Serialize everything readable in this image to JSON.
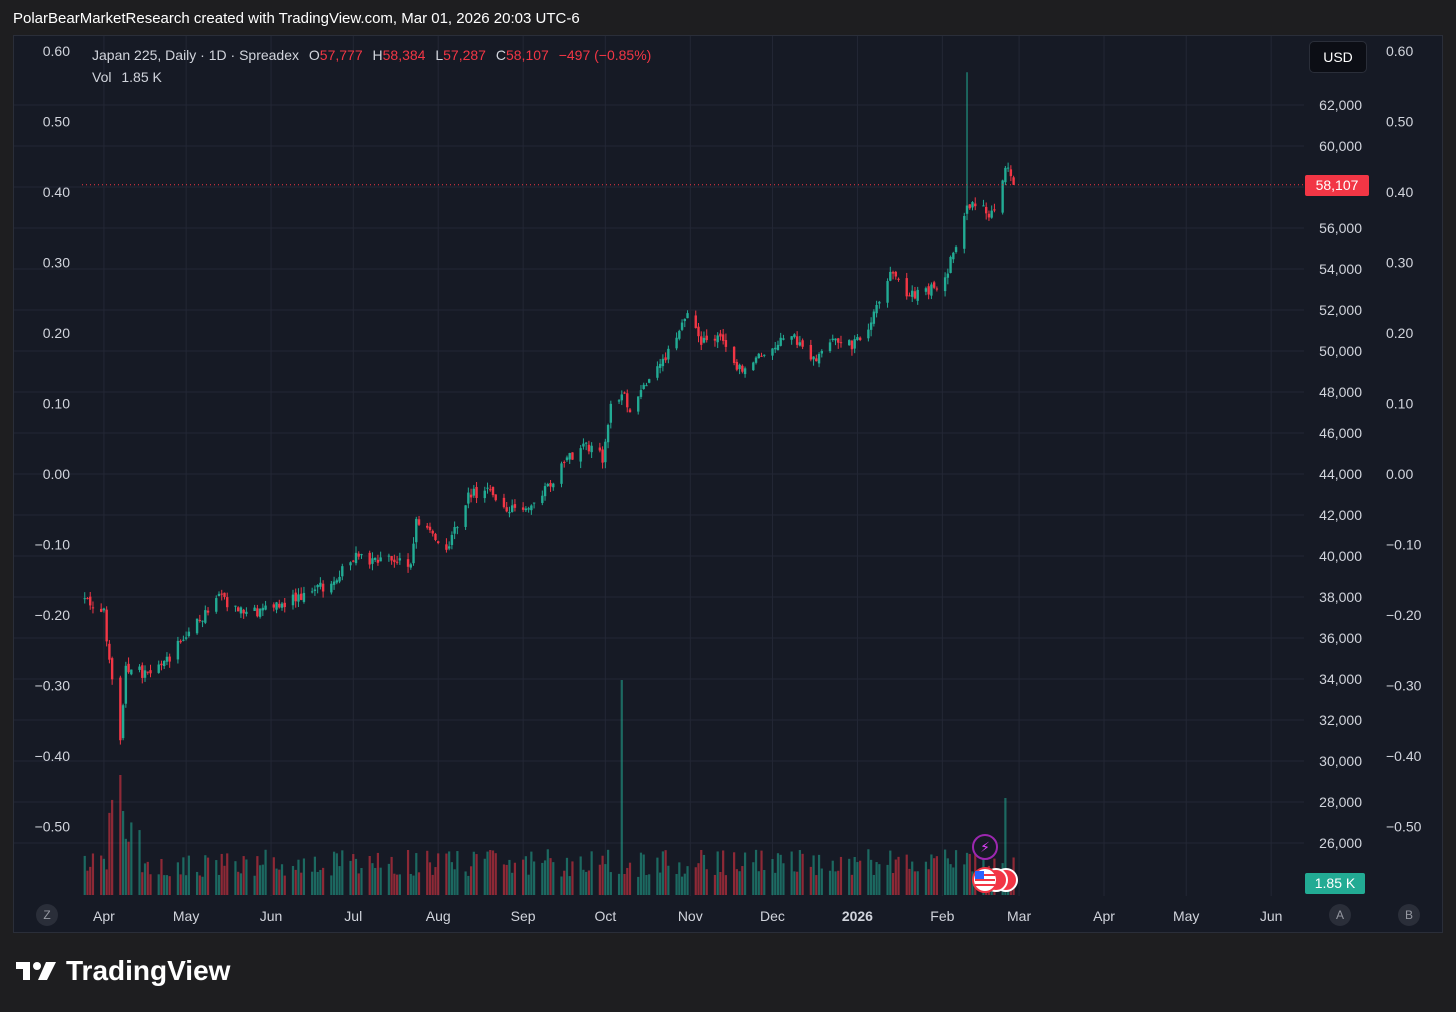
{
  "caption": "PolarBearMarketResearch created with TradingView.com, Mar 01, 2026 20:03 UTC-6",
  "legend": {
    "symbol": "Japan 225, Daily · 1D · Spreadex",
    "o_label": "O",
    "o_value": "57,777",
    "h_label": "H",
    "h_value": "58,384",
    "l_label": "L",
    "l_value": "57,287",
    "c_label": "C",
    "c_value": "58,107",
    "change": "−497 (−0.85%)",
    "vol_label": "Vol",
    "vol_value": "1.85 K"
  },
  "currency_button": "USD",
  "last_price_tag": "58,107",
  "volume_tag": "1.85 K",
  "corner_buttons": {
    "z": "Z",
    "a": "A",
    "b": "B"
  },
  "brand": "TradingView",
  "icons": {
    "event": "lightning-icon",
    "flags": "us-flag-icon",
    "logo": "tradingview-logo-icon"
  },
  "colors": {
    "up": "#22ab94",
    "down": "#f23645",
    "background": "#161a25",
    "grid": "#232735"
  },
  "chart_data": {
    "type": "candlestick",
    "price_axis_right": {
      "ticks": [
        "62,000",
        "60,000",
        "58,000",
        "56,000",
        "54,000",
        "52,000",
        "50,000",
        "48,000",
        "46,000",
        "44,000",
        "42,000",
        "40,000",
        "38,000",
        "36,000",
        "34,000",
        "32,000",
        "30,000",
        "28,000",
        "26,000"
      ],
      "values": [
        62000,
        60000,
        58000,
        56000,
        54000,
        52000,
        50000,
        48000,
        46000,
        44000,
        42000,
        40000,
        38000,
        36000,
        34000,
        32000,
        30000,
        28000,
        26000
      ],
      "last_price": 58107
    },
    "pane_axis": {
      "ticks": [
        "0.60",
        "0.50",
        "0.40",
        "0.30",
        "0.20",
        "0.10",
        "0.00",
        "−0.10",
        "−0.20",
        "−0.30",
        "−0.40",
        "−0.50"
      ],
      "values": [
        0.6,
        0.5,
        0.4,
        0.3,
        0.2,
        0.1,
        0.0,
        -0.1,
        -0.2,
        -0.3,
        -0.4,
        -0.5
      ]
    },
    "time_axis": {
      "ticks": [
        "Apr",
        "May",
        "Jun",
        "Jul",
        "Aug",
        "Sep",
        "Oct",
        "Nov",
        "Dec",
        "2026",
        "Feb",
        "Mar",
        "Apr",
        "May",
        "Jun"
      ],
      "bold": [
        "2026"
      ]
    },
    "close_path": [
      [
        "2025-03-25",
        37900
      ],
      [
        "2025-04-01",
        37200
      ],
      [
        "2025-04-04",
        33800
      ],
      [
        "2025-04-07",
        31200
      ],
      [
        "2025-04-09",
        34600
      ],
      [
        "2025-04-15",
        34300
      ],
      [
        "2025-04-22",
        34500
      ],
      [
        "2025-04-30",
        36000
      ],
      [
        "2025-05-07",
        37000
      ],
      [
        "2025-05-13",
        38000
      ],
      [
        "2025-05-20",
        37400
      ],
      [
        "2025-05-27",
        37300
      ],
      [
        "2025-06-03",
        37500
      ],
      [
        "2025-06-10",
        38000
      ],
      [
        "2025-06-17",
        38300
      ],
      [
        "2025-06-24",
        38800
      ],
      [
        "2025-07-01",
        40000
      ],
      [
        "2025-07-08",
        39700
      ],
      [
        "2025-07-15",
        39800
      ],
      [
        "2025-07-22",
        39500
      ],
      [
        "2025-07-24",
        41600
      ],
      [
        "2025-07-31",
        40800
      ],
      [
        "2025-08-05",
        40500
      ],
      [
        "2025-08-12",
        43000
      ],
      [
        "2025-08-19",
        43200
      ],
      [
        "2025-08-26",
        42300
      ],
      [
        "2025-09-02",
        42200
      ],
      [
        "2025-09-09",
        43200
      ],
      [
        "2025-09-16",
        44500
      ],
      [
        "2025-09-23",
        45500
      ],
      [
        "2025-09-30",
        44800
      ],
      [
        "2025-10-03",
        47500
      ],
      [
        "2025-10-08",
        47800
      ],
      [
        "2025-10-10",
        46800
      ],
      [
        "2025-10-14",
        48200
      ],
      [
        "2025-10-21",
        49200
      ],
      [
        "2025-10-28",
        50800
      ],
      [
        "2025-10-31",
        52000
      ],
      [
        "2025-11-04",
        50500
      ],
      [
        "2025-11-11",
        50800
      ],
      [
        "2025-11-18",
        49000
      ],
      [
        "2025-11-25",
        49800
      ],
      [
        "2025-12-02",
        50300
      ],
      [
        "2025-12-09",
        50600
      ],
      [
        "2025-12-16",
        49600
      ],
      [
        "2025-12-23",
        50600
      ],
      [
        "2025-12-30",
        50300
      ],
      [
        "2026-01-06",
        51400
      ],
      [
        "2026-01-13",
        53900
      ],
      [
        "2026-01-16",
        53400
      ],
      [
        "2026-01-20",
        52700
      ],
      [
        "2026-01-27",
        53000
      ],
      [
        "2026-02-02",
        53500
      ],
      [
        "2026-02-06",
        55300
      ],
      [
        "2026-02-10",
        57200
      ],
      [
        "2026-02-13",
        57000
      ],
      [
        "2026-02-17",
        56800
      ],
      [
        "2026-02-20",
        56700
      ],
      [
        "2026-02-24",
        59000
      ],
      [
        "2026-02-26",
        58500
      ],
      [
        "2026-02-27",
        58107
      ]
    ],
    "intraday_extremes": {
      "low": 30800,
      "high": 63600
    },
    "volume": {
      "last": "1.85 K",
      "spikes": [
        "2025-04-07",
        "2025-10-07",
        "2026-02-24"
      ]
    }
  }
}
